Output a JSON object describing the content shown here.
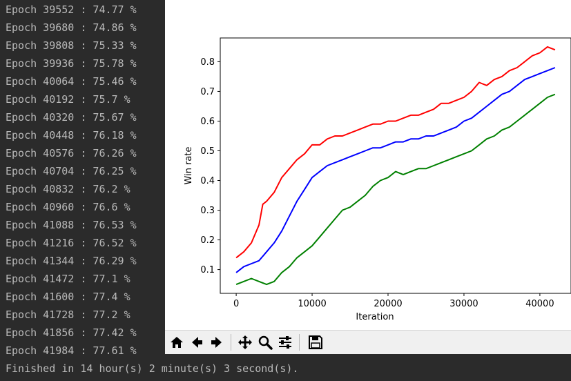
{
  "terminal": {
    "lines": [
      "Epoch 39552 : 74.77 %",
      "Epoch 39680 : 74.86 %",
      "Epoch 39808 : 75.33 %",
      "Epoch 39936 : 75.78 %",
      "Epoch 40064 : 75.46 %",
      "Epoch 40192 : 75.7 %",
      "Epoch 40320 : 75.67 %",
      "Epoch 40448 : 76.18 %",
      "Epoch 40576 : 76.26 %",
      "Epoch 40704 : 76.25 %",
      "Epoch 40832 : 76.2 %",
      "Epoch 40960 : 76.6 %",
      "Epoch 41088 : 76.53 %",
      "Epoch 41216 : 76.52 %",
      "Epoch 41344 : 76.29 %",
      "Epoch 41472 : 77.1 %",
      "Epoch 41600 : 77.4 %",
      "Epoch 41728 : 77.2 %",
      "Epoch 41856 : 77.42 %",
      "Epoch 41984 : 77.61 %"
    ],
    "finished": "Finished in 14 hour(s) 2 minute(s) 3 second(s)."
  },
  "toolbar": {
    "buttons": [
      {
        "name": "home-button",
        "icon": "home-icon"
      },
      {
        "name": "back-button",
        "icon": "arrow-left-icon"
      },
      {
        "name": "forward-button",
        "icon": "arrow-right-icon"
      },
      {
        "name": "pan-button",
        "icon": "move-icon"
      },
      {
        "name": "zoom-button",
        "icon": "magnifier-icon"
      },
      {
        "name": "configure-subplots-button",
        "icon": "sliders-icon"
      },
      {
        "name": "save-button",
        "icon": "floppy-disk-icon"
      }
    ]
  },
  "chart_data": {
    "type": "line",
    "title": "",
    "xlabel": "Iteration",
    "ylabel": "Win rate",
    "xlim": [
      -2100,
      44100
    ],
    "ylim": [
      0.02,
      0.88
    ],
    "xticks": [
      0,
      10000,
      20000,
      30000,
      40000
    ],
    "yticks": [
      0.1,
      0.2,
      0.3,
      0.4,
      0.5,
      0.6,
      0.7,
      0.8
    ],
    "grid": false,
    "legend": "none",
    "series": [
      {
        "color": "#ff0000",
        "x": [
          0,
          1000,
          2000,
          3000,
          3500,
          4000,
          5000,
          6000,
          7000,
          8000,
          9000,
          10000,
          11000,
          12000,
          13000,
          14000,
          15000,
          16000,
          17000,
          18000,
          19000,
          20000,
          21000,
          22000,
          23000,
          24000,
          25000,
          26000,
          27000,
          28000,
          29000,
          30000,
          31000,
          32000,
          33000,
          34000,
          35000,
          36000,
          37000,
          38000,
          39000,
          40000,
          41000,
          42000
        ],
        "values": [
          0.14,
          0.16,
          0.19,
          0.25,
          0.32,
          0.33,
          0.36,
          0.41,
          0.44,
          0.47,
          0.49,
          0.52,
          0.52,
          0.54,
          0.55,
          0.55,
          0.56,
          0.57,
          0.58,
          0.59,
          0.59,
          0.6,
          0.6,
          0.61,
          0.62,
          0.62,
          0.63,
          0.64,
          0.66,
          0.66,
          0.67,
          0.68,
          0.7,
          0.73,
          0.72,
          0.74,
          0.75,
          0.77,
          0.78,
          0.8,
          0.82,
          0.83,
          0.85,
          0.84
        ]
      },
      {
        "color": "#0000ff",
        "x": [
          0,
          1000,
          2000,
          3000,
          4000,
          5000,
          6000,
          7000,
          8000,
          9000,
          10000,
          11000,
          12000,
          13000,
          14000,
          15000,
          16000,
          17000,
          18000,
          19000,
          20000,
          21000,
          22000,
          23000,
          24000,
          25000,
          26000,
          27000,
          28000,
          29000,
          30000,
          31000,
          32000,
          33000,
          34000,
          35000,
          36000,
          37000,
          38000,
          39000,
          40000,
          41000,
          42000
        ],
        "values": [
          0.09,
          0.11,
          0.12,
          0.13,
          0.16,
          0.19,
          0.23,
          0.28,
          0.33,
          0.37,
          0.41,
          0.43,
          0.45,
          0.46,
          0.47,
          0.48,
          0.49,
          0.5,
          0.51,
          0.51,
          0.52,
          0.53,
          0.53,
          0.54,
          0.54,
          0.55,
          0.55,
          0.56,
          0.57,
          0.58,
          0.6,
          0.61,
          0.63,
          0.65,
          0.67,
          0.69,
          0.7,
          0.72,
          0.74,
          0.75,
          0.76,
          0.77,
          0.78
        ]
      },
      {
        "color": "#008000",
        "x": [
          0,
          1000,
          2000,
          3000,
          4000,
          5000,
          6000,
          7000,
          8000,
          9000,
          10000,
          11000,
          12000,
          13000,
          14000,
          15000,
          16000,
          17000,
          18000,
          19000,
          20000,
          21000,
          22000,
          23000,
          24000,
          25000,
          26000,
          27000,
          28000,
          29000,
          30000,
          31000,
          32000,
          33000,
          34000,
          35000,
          36000,
          37000,
          38000,
          39000,
          40000,
          41000,
          42000
        ],
        "values": [
          0.05,
          0.06,
          0.07,
          0.06,
          0.05,
          0.06,
          0.09,
          0.11,
          0.14,
          0.16,
          0.18,
          0.21,
          0.24,
          0.27,
          0.3,
          0.31,
          0.33,
          0.35,
          0.38,
          0.4,
          0.41,
          0.43,
          0.42,
          0.43,
          0.44,
          0.44,
          0.45,
          0.46,
          0.47,
          0.48,
          0.49,
          0.5,
          0.52,
          0.54,
          0.55,
          0.57,
          0.58,
          0.6,
          0.62,
          0.64,
          0.66,
          0.68,
          0.69
        ]
      }
    ]
  }
}
